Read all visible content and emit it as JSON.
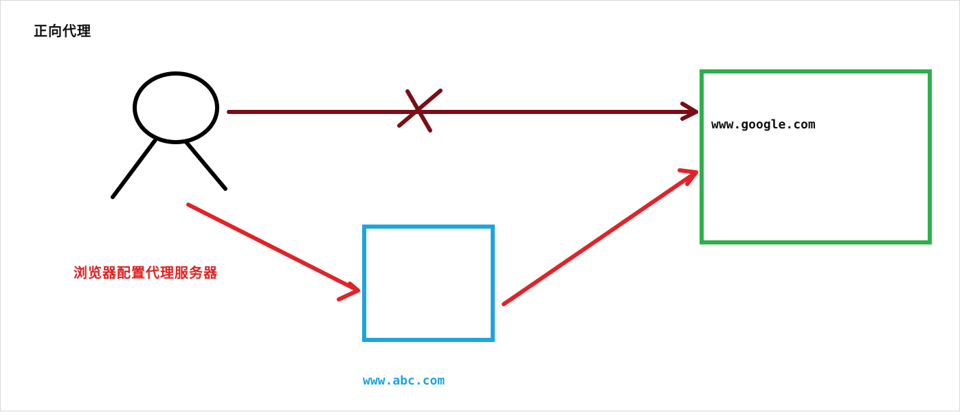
{
  "title": "正向代理",
  "labels": {
    "proxy_config": "浏览器配置代理服务器",
    "target_site": "www.google.com",
    "proxy_site": "www.abc.com"
  },
  "colors": {
    "person": "#000000",
    "blocked_line": "#7a0d16",
    "proxy_path": "#e32228",
    "target_box": "#2eaf4a",
    "proxy_box": "#1fa4e0"
  }
}
